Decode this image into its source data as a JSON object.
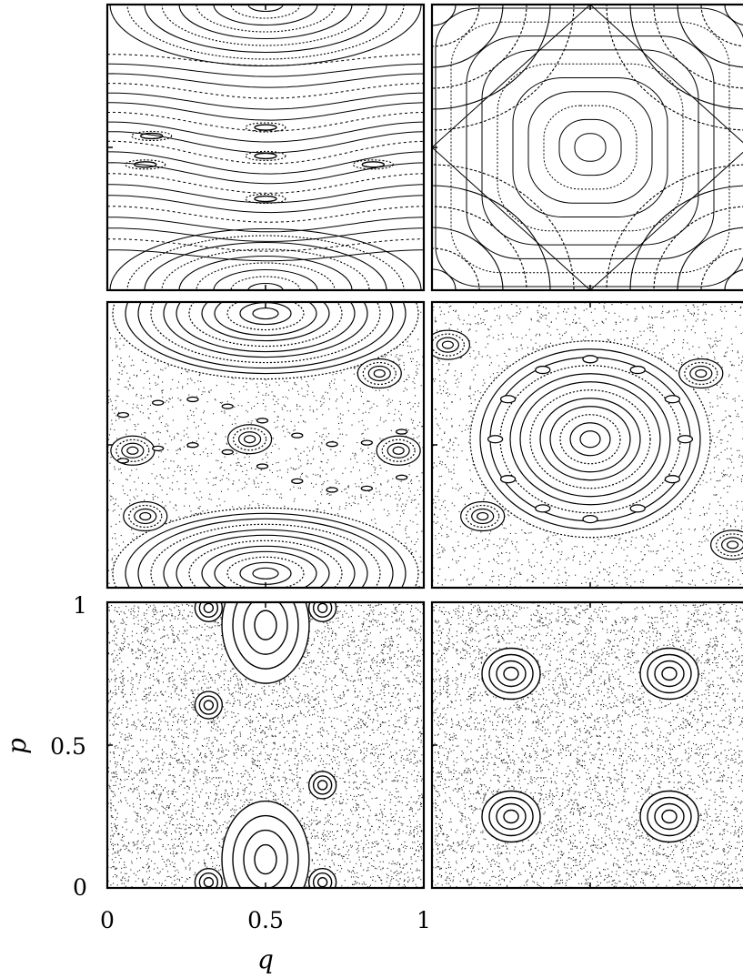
{
  "chart_data": {
    "type": "scatter",
    "description_grid": "3x2 panels of phase portraits",
    "xlabel": "q",
    "ylabel": "p",
    "xlim": [
      0,
      1
    ],
    "ylim": [
      0,
      1
    ],
    "x_ticks": [
      "0",
      "0.5",
      "1"
    ],
    "y_ticks": [
      "0",
      "0.5",
      "1"
    ],
    "panels": [
      {
        "row": 0,
        "col": 0,
        "pattern": "shear-flow",
        "chaos": 0.0,
        "islands": [
          {
            "q": 0.5,
            "p": 0.96
          },
          {
            "q": 0.5,
            "p": 0.03
          },
          {
            "q": 0.5,
            "p": 0.5
          },
          {
            "q": 0.12,
            "p": 0.43
          },
          {
            "q": 0.82,
            "p": 0.43
          }
        ]
      },
      {
        "row": 0,
        "col": 1,
        "pattern": "cellular",
        "chaos": 0.0,
        "islands": [
          {
            "q": 0.5,
            "p": 0.5
          },
          {
            "q": 0.0,
            "p": 0.0
          },
          {
            "q": 1.0,
            "p": 1.0
          },
          {
            "q": 1.0,
            "p": 0.0
          },
          {
            "q": 0.0,
            "p": 1.0
          }
        ]
      },
      {
        "row": 1,
        "col": 0,
        "pattern": "mixed",
        "chaos": 0.45,
        "islands": [
          {
            "q": 0.5,
            "p": 0.96
          },
          {
            "q": 0.5,
            "p": 0.05
          },
          {
            "q": 0.45,
            "p": 0.52
          },
          {
            "q": 0.08,
            "p": 0.48
          },
          {
            "q": 0.92,
            "p": 0.48
          },
          {
            "q": 0.86,
            "p": 0.75
          },
          {
            "q": 0.12,
            "p": 0.25
          }
        ]
      },
      {
        "row": 1,
        "col": 1,
        "pattern": "mixed",
        "chaos": 0.45,
        "islands": [
          {
            "q": 0.5,
            "p": 0.52
          },
          {
            "q": 0.85,
            "p": 0.75
          },
          {
            "q": 0.16,
            "p": 0.25
          },
          {
            "q": 0.05,
            "p": 0.85
          },
          {
            "q": 0.95,
            "p": 0.15
          }
        ]
      },
      {
        "row": 2,
        "col": 0,
        "pattern": "chaotic",
        "chaos": 1.0,
        "islands": [
          {
            "q": 0.5,
            "p": 0.92
          },
          {
            "q": 0.5,
            "p": 0.1
          },
          {
            "q": 0.32,
            "p": 0.64
          },
          {
            "q": 0.68,
            "p": 0.36
          },
          {
            "q": 0.32,
            "p": 0.98
          },
          {
            "q": 0.68,
            "p": 0.98
          },
          {
            "q": 0.32,
            "p": 0.02
          },
          {
            "q": 0.68,
            "p": 0.02
          }
        ]
      },
      {
        "row": 2,
        "col": 1,
        "pattern": "chaotic",
        "chaos": 1.0,
        "islands": [
          {
            "q": 0.25,
            "p": 0.75
          },
          {
            "q": 0.75,
            "p": 0.75
          },
          {
            "q": 0.25,
            "p": 0.25
          },
          {
            "q": 0.75,
            "p": 0.25
          }
        ]
      }
    ]
  }
}
